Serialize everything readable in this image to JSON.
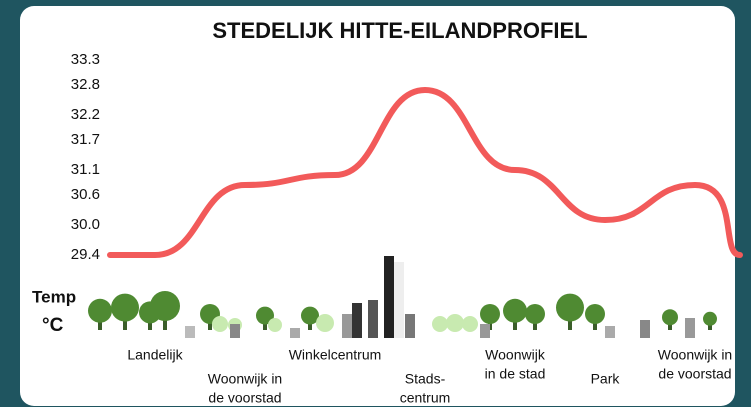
{
  "chart_data": {
    "type": "line",
    "title": "STEDELIJK HITTE-EILANDPROFIEL",
    "ylabel_lines": [
      "Temp",
      "°C"
    ],
    "categories": [
      [
        "Landelijk"
      ],
      [
        "Woonwijk in",
        "de voorstad"
      ],
      [
        "Winkelcentrum"
      ],
      [
        "Stads-",
        "centrum"
      ],
      [
        "Woonwijk",
        "in de stad"
      ],
      [
        "Park"
      ],
      [
        "Woonwijk in",
        "de voorstad"
      ]
    ],
    "series": [
      {
        "color": "#f25a5a",
        "values": [
          29.4,
          30.8,
          31.0,
          32.7,
          31.1,
          30.1,
          30.8
        ]
      }
    ],
    "ylim": [
      29.4,
      33.3
    ],
    "yticks": [
      29.4,
      {
        "value": 30,
        "label": "30.0"
      },
      30.6,
      31.1,
      31.7,
      32.2,
      32.8,
      33.3
    ]
  }
}
